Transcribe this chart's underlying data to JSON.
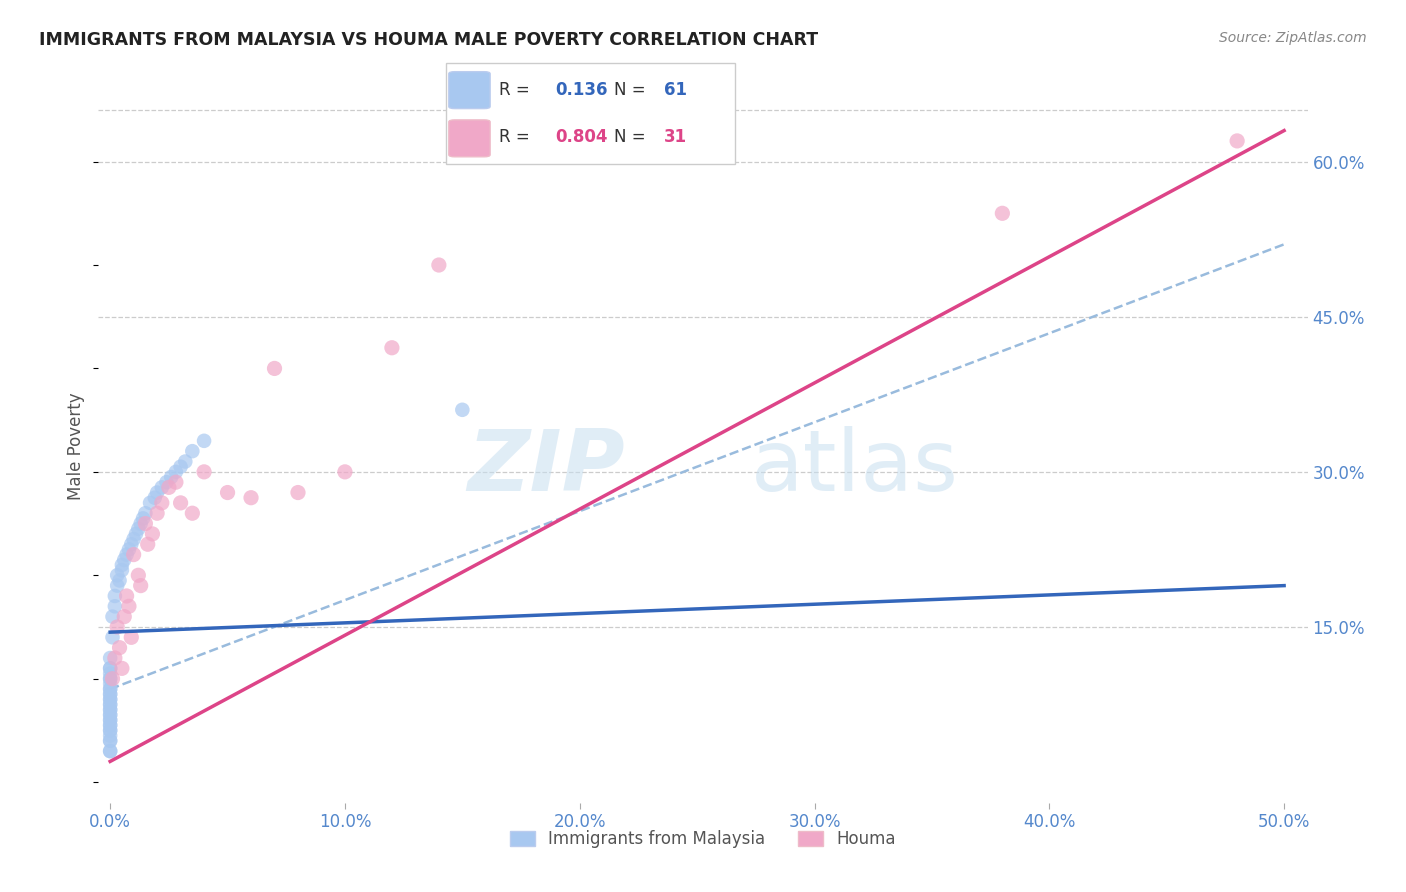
{
  "title": "IMMIGRANTS FROM MALAYSIA VS HOUMA MALE POVERTY CORRELATION CHART",
  "source": "Source: ZipAtlas.com",
  "ylabel": "Male Poverty",
  "ytick_labels": [
    "15.0%",
    "30.0%",
    "45.0%",
    "60.0%"
  ],
  "ytick_values": [
    15.0,
    30.0,
    45.0,
    60.0
  ],
  "xtick_values": [
    0.0,
    10.0,
    20.0,
    30.0,
    40.0,
    50.0
  ],
  "xtick_labels": [
    "0.0%",
    "10.0%",
    "20.0%",
    "30.0%",
    "40.0%",
    "50.0%"
  ],
  "xlim": [
    -0.5,
    51.0
  ],
  "ylim": [
    -2.0,
    67.0
  ],
  "watermark_zip": "ZIP",
  "watermark_atlas": "atlas",
  "legend_blue_r": "0.136",
  "legend_blue_n": "61",
  "legend_pink_r": "0.804",
  "legend_pink_n": "31",
  "legend_label_blue": "Immigrants from Malaysia",
  "legend_label_pink": "Houma",
  "blue_color": "#a8c8f0",
  "pink_color": "#f0a8c8",
  "blue_line_color": "#3366bb",
  "pink_line_color": "#dd4488",
  "dashed_line_color": "#99bbdd",
  "blue_scatter_x": [
    0.0,
    0.0,
    0.0,
    0.0,
    0.0,
    0.0,
    0.0,
    0.0,
    0.0,
    0.0,
    0.0,
    0.0,
    0.0,
    0.0,
    0.0,
    0.0,
    0.0,
    0.0,
    0.0,
    0.0,
    0.0,
    0.0,
    0.0,
    0.0,
    0.0,
    0.0,
    0.0,
    0.0,
    0.0,
    0.0,
    0.1,
    0.1,
    0.2,
    0.2,
    0.3,
    0.3,
    0.4,
    0.5,
    0.5,
    0.6,
    0.7,
    0.8,
    0.9,
    1.0,
    1.1,
    1.2,
    1.3,
    1.4,
    1.5,
    1.7,
    1.9,
    2.0,
    2.2,
    2.4,
    2.6,
    2.8,
    3.0,
    3.2,
    3.5,
    4.0,
    15.0
  ],
  "blue_scatter_y": [
    5.0,
    6.0,
    7.0,
    8.0,
    4.0,
    9.0,
    10.0,
    5.5,
    6.5,
    7.5,
    8.5,
    3.0,
    11.0,
    12.0,
    4.5,
    9.5,
    10.5,
    5.0,
    6.0,
    7.0,
    8.0,
    4.0,
    9.0,
    10.0,
    5.5,
    6.5,
    7.5,
    8.5,
    3.0,
    11.0,
    14.0,
    16.0,
    17.0,
    18.0,
    19.0,
    20.0,
    19.5,
    20.5,
    21.0,
    21.5,
    22.0,
    22.5,
    23.0,
    23.5,
    24.0,
    24.5,
    25.0,
    25.5,
    26.0,
    27.0,
    27.5,
    28.0,
    28.5,
    29.0,
    29.5,
    30.0,
    30.5,
    31.0,
    32.0,
    33.0,
    36.0
  ],
  "pink_scatter_x": [
    0.1,
    0.2,
    0.3,
    0.4,
    0.5,
    0.6,
    0.7,
    0.8,
    0.9,
    1.0,
    1.2,
    1.3,
    1.5,
    1.6,
    1.8,
    2.0,
    2.2,
    2.5,
    2.8,
    3.0,
    3.5,
    4.0,
    5.0,
    6.0,
    7.0,
    8.0,
    10.0,
    12.0,
    14.0,
    38.0,
    48.0
  ],
  "pink_scatter_y": [
    10.0,
    12.0,
    15.0,
    13.0,
    11.0,
    16.0,
    18.0,
    17.0,
    14.0,
    22.0,
    20.0,
    19.0,
    25.0,
    23.0,
    24.0,
    26.0,
    27.0,
    28.5,
    29.0,
    27.0,
    26.0,
    30.0,
    28.0,
    27.5,
    40.0,
    28.0,
    30.0,
    42.0,
    50.0,
    55.0,
    62.0
  ],
  "blue_line_x": [
    0.0,
    50.0
  ],
  "blue_line_y": [
    14.5,
    19.0
  ],
  "pink_line_x": [
    0.0,
    50.0
  ],
  "pink_line_y": [
    2.0,
    63.0
  ],
  "dashed_line_x": [
    0.0,
    50.0
  ],
  "dashed_line_y": [
    9.0,
    52.0
  ]
}
